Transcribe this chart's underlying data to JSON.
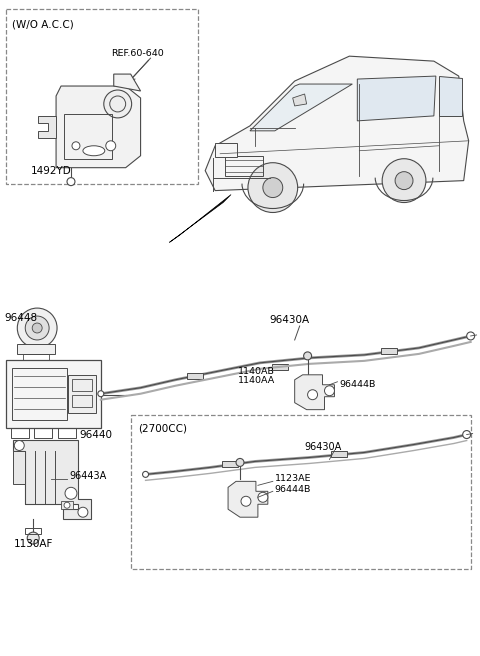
{
  "background_color": "#ffffff",
  "line_color": "#4a4a4a",
  "text_color": "#000000",
  "fig_width": 4.8,
  "fig_height": 6.56,
  "dpi": 100,
  "labels": {
    "wo_acc": "(W/O A.C.C)",
    "ref_60_640": "REF.60-640",
    "part_1492YD": "1492YD",
    "part_96448": "96448",
    "part_96440": "96440",
    "part_96443A": "96443A",
    "part_1130AF": "1130AF",
    "part_96430A_top": "96430A",
    "part_1140AB": "1140AB",
    "part_1140AA": "1140AA",
    "part_96444B_top": "96444B",
    "box_2700CC": "(2700CC)",
    "part_96430A_bot": "96430A",
    "part_1123AE": "1123AE",
    "part_96444B_bot": "96444B"
  }
}
